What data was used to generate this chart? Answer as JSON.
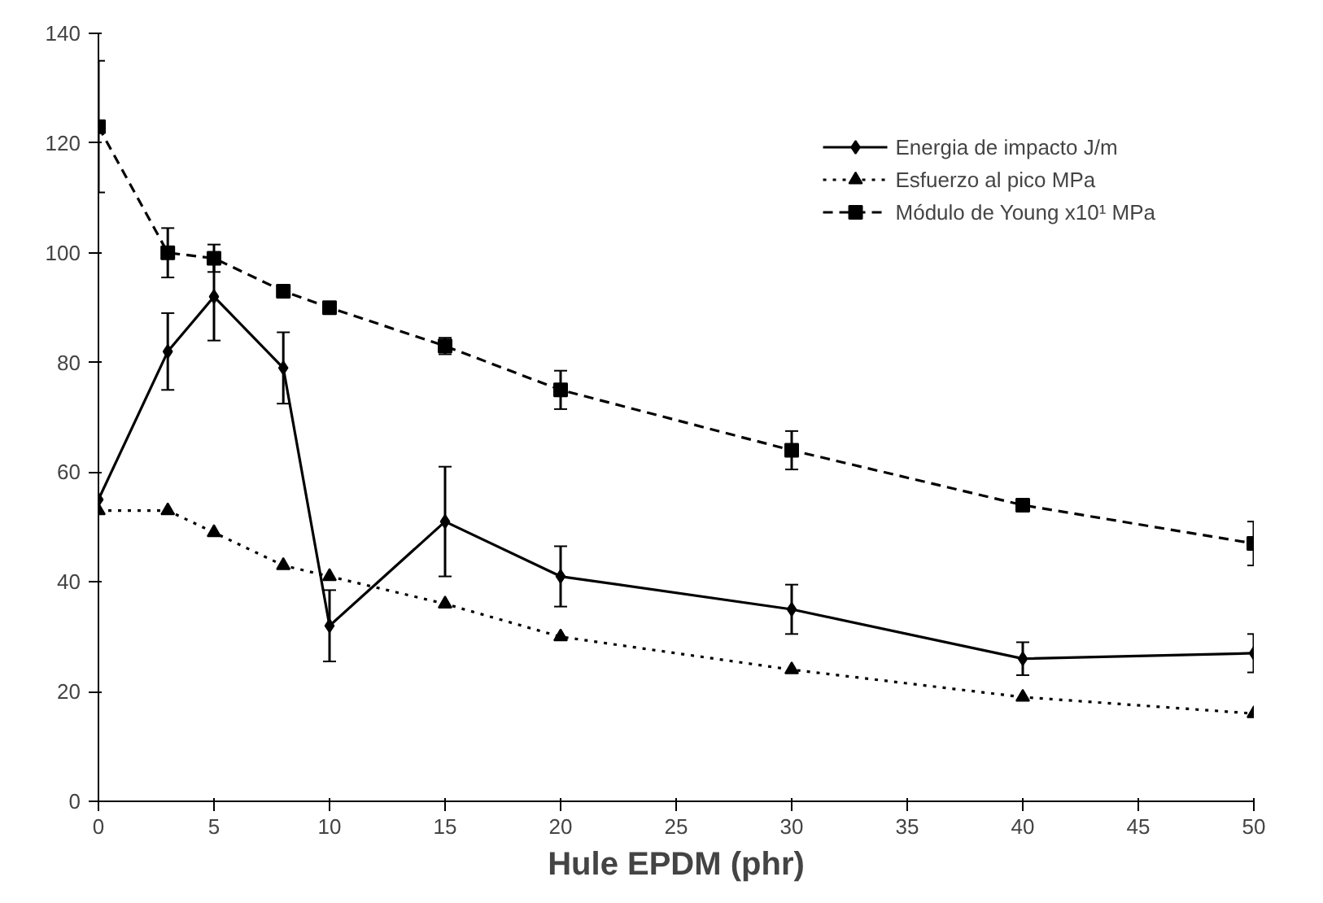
{
  "chart_data": {
    "type": "line",
    "xlabel": "Hule EPDM (phr)",
    "x": [
      0,
      3,
      5,
      8,
      10,
      15,
      20,
      30,
      40,
      50
    ],
    "xlim": [
      0,
      50
    ],
    "xticks": [
      0,
      5,
      10,
      15,
      20,
      25,
      30,
      35,
      40,
      45,
      50
    ],
    "ylim": [
      0,
      140
    ],
    "yticks": [
      0,
      20,
      40,
      60,
      80,
      100,
      120,
      140
    ],
    "grid": false,
    "legend": "top right",
    "series": [
      {
        "name": "Energia de impacto J/m",
        "color": "#000000",
        "marker": "diamond",
        "line_style": "solid",
        "values": [
          55,
          82,
          92,
          79,
          32,
          51,
          41,
          35,
          26,
          27
        ],
        "errors": [
          null,
          7,
          8,
          6.5,
          6.5,
          10,
          5.5,
          4.5,
          3,
          3.5
        ]
      },
      {
        "name": "Esfuerzo al pico MPa",
        "color": "#000000",
        "marker": "triangle",
        "line_style": "dotted",
        "values": [
          53,
          53,
          49,
          43,
          41,
          36,
          30,
          24,
          19,
          16
        ]
      },
      {
        "name": "Módulo de Young x10¹ MPa",
        "color": "#000000",
        "marker": "square",
        "line_style": "dashed",
        "values": [
          123,
          100,
          99,
          93,
          90,
          83,
          75,
          64,
          54,
          47
        ],
        "errors": [
          12,
          4.5,
          2.5,
          null,
          null,
          1.5,
          3.5,
          3.5,
          1,
          4
        ]
      }
    ]
  }
}
